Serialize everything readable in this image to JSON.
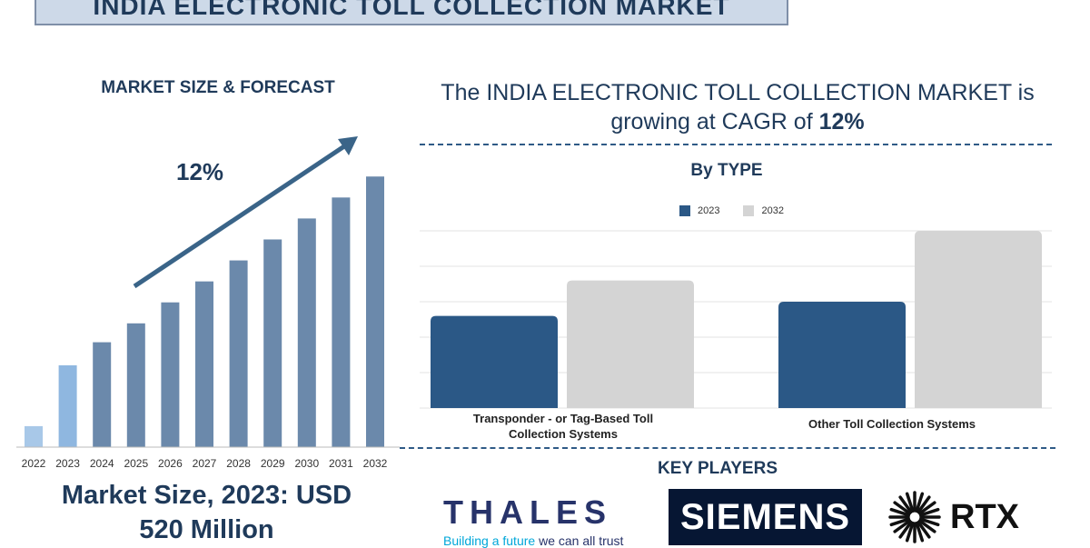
{
  "title": "INDIA ELECTRONIC TOLL COLLECTION MARKET",
  "left_panel": {
    "header": "MARKET SIZE & FORECAST",
    "cagr_label": "12%",
    "market_size_line1": "Market Size, 2023: USD",
    "market_size_line2": "520 Million"
  },
  "right_panel": {
    "headline_prefix": "The INDIA ELECTRONIC TOLL COLLECTION MARKET is growing at CAGR of",
    "headline_value": "12%",
    "by_type_header": "By  TYPE",
    "legend": [
      {
        "label": "2023",
        "color": "#2b5886"
      },
      {
        "label": "2032",
        "color": "#d4d4d4"
      }
    ],
    "categories": [
      "Transponder - or Tag-Based Toll Collection Systems",
      "Other Toll Collection Systems"
    ],
    "key_players_header": "KEY PLAYERS",
    "players": {
      "thales_name": "THALES",
      "thales_tagline_a": "Building a future",
      "thales_tagline_b": " we can all trust",
      "siemens_name": "SIEMENS",
      "rtx_name": "RTX"
    }
  },
  "chart_data": [
    {
      "type": "bar",
      "categories": [
        "2022",
        "2023",
        "2024",
        "2025",
        "2026",
        "2027",
        "2028",
        "2029",
        "2030",
        "2031",
        "2032"
      ],
      "values": [
        1.0,
        3.9,
        5.0,
        5.9,
        6.9,
        7.9,
        8.9,
        9.9,
        10.9,
        11.9,
        12.9
      ],
      "highlight_colors": [
        "#a8c8e8",
        "#8fb7e0",
        "#6b89ab",
        "#6b89ab",
        "#6b89ab",
        "#6b89ab",
        "#6b89ab",
        "#6b89ab",
        "#6b89ab",
        "#6b89ab",
        "#6b89ab"
      ],
      "ylim": [
        0,
        13.5
      ],
      "annotation": "12%"
    },
    {
      "type": "bar",
      "categories": [
        "Transponder - or Tag-Based Toll Collection Systems",
        "Other Toll Collection Systems"
      ],
      "series": [
        {
          "name": "2023",
          "values": [
            2.6,
            3.0
          ],
          "color": "#2b5886"
        },
        {
          "name": "2032",
          "values": [
            3.6,
            5.0
          ],
          "color": "#d4d4d4"
        }
      ],
      "ylim": [
        0,
        5
      ],
      "grid": true
    }
  ]
}
